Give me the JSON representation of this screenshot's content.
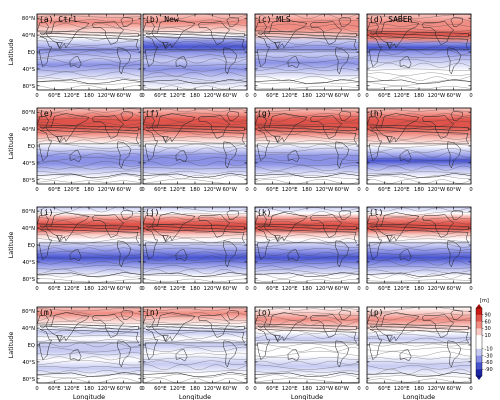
{
  "chart_data": {
    "type": "heatmap",
    "layout": "4x4 map panels",
    "panels": [
      {
        "label": "(a) Ctrl",
        "pattern": "a"
      },
      {
        "label": "(b) New",
        "pattern": "b"
      },
      {
        "label": "(c) MLS",
        "pattern": "c"
      },
      {
        "label": "(d) SABER",
        "pattern": "d"
      },
      {
        "label": "(e)",
        "pattern": "e"
      },
      {
        "label": "(f)",
        "pattern": "e"
      },
      {
        "label": "(g)",
        "pattern": "e"
      },
      {
        "label": "(h)",
        "pattern": "h"
      },
      {
        "label": "(i)",
        "pattern": "i"
      },
      {
        "label": "(j)",
        "pattern": "i"
      },
      {
        "label": "(k)",
        "pattern": "i"
      },
      {
        "label": "(l)",
        "pattern": "i"
      },
      {
        "label": "(m)",
        "pattern": "m"
      },
      {
        "label": "(n)",
        "pattern": "n"
      },
      {
        "label": "(o)",
        "pattern": "o"
      },
      {
        "label": "(p)",
        "pattern": "o"
      }
    ],
    "ylabel": "Latitude",
    "xlabel": "Longitude",
    "y_ticks": [
      "80°N",
      "40°N",
      "EQ",
      "40°S",
      "80°S"
    ],
    "y_tick_values": [
      80,
      40,
      0,
      -40,
      -80
    ],
    "x_ticks": [
      "0",
      "60°E",
      "120°E",
      "180",
      "120°W",
      "60°W",
      "0"
    ],
    "x_tick_values": [
      0,
      60,
      120,
      180,
      240,
      300,
      360
    ],
    "xlim": [
      0,
      360
    ],
    "ylim": [
      -90,
      90
    ],
    "colorbar": {
      "unit": "[m]",
      "ticks": [
        "90",
        "60",
        "30",
        "10",
        "-10",
        "-30",
        "-60",
        "-90"
      ],
      "tick_values": [
        90,
        60,
        30,
        10,
        -10,
        -30,
        -60,
        -90
      ],
      "colors": {
        "positive": "#d7301f",
        "negative": "#2b3bc4",
        "neutral": "#ffffff"
      }
    },
    "grid": false
  }
}
